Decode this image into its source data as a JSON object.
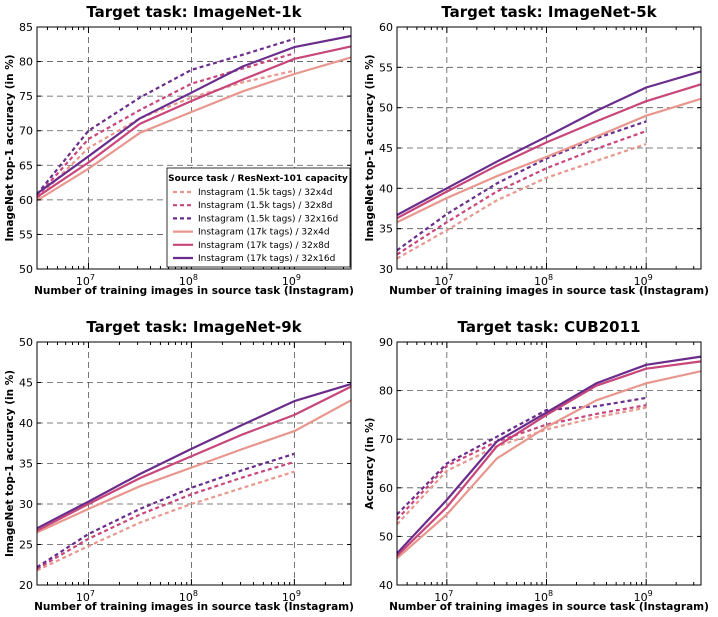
{
  "legend": {
    "title": "Source task / ResNext-101 capacity",
    "entries": [
      {
        "label": "Instagram (1.5k tags) / 32x4d",
        "color": "#e8978e",
        "dashed": true
      },
      {
        "label": "Instagram (1.5k tags) / 32x8d",
        "color": "#c8467a",
        "dashed": true
      },
      {
        "label": "Instagram (1.5k tags) / 32x16d",
        "color": "#6a2d8c",
        "dashed": true
      },
      {
        "label": "Instagram (17k tags) / 32x4d",
        "color": "#e8978e",
        "dashed": false
      },
      {
        "label": "Instagram (17k tags) / 32x8d",
        "color": "#c8467a",
        "dashed": false
      },
      {
        "label": "Instagram (17k tags) / 32x16d",
        "color": "#6a2d8c",
        "dashed": false
      }
    ]
  },
  "chart_data": [
    {
      "type": "line",
      "title": "Target task: ImageNet-1k",
      "xlabel": "Number of training images in source task (Instagram)",
      "ylabel": "ImageNet top-1 accuracy (in %)",
      "xscale": "log",
      "xlim_log10": [
        6.5,
        9.55
      ],
      "ylim": [
        50,
        85
      ],
      "yticks": [
        50,
        55,
        60,
        65,
        70,
        75,
        80,
        85
      ],
      "xtick_base": "10",
      "xtick_exponents": [
        "7",
        "8",
        "9"
      ],
      "legend_position": "lower-right",
      "series": [
        {
          "name": "Instagram (1.5k tags) / 32x4d",
          "x_log10": [
            6.5,
            7.0,
            7.5,
            8.0,
            8.5,
            9.0
          ],
          "values": [
            60.2,
            67.5,
            71.8,
            74.8,
            77.0,
            78.7
          ]
        },
        {
          "name": "Instagram (1.5k tags) / 32x8d",
          "x_log10": [
            6.5,
            7.0,
            7.5,
            8.0,
            8.5,
            9.0
          ],
          "values": [
            60.5,
            68.8,
            73.0,
            76.8,
            79.0,
            81.2
          ]
        },
        {
          "name": "Instagram (1.5k tags) / 32x16d",
          "x_log10": [
            6.5,
            7.0,
            7.5,
            8.0,
            8.5,
            9.0
          ],
          "values": [
            60.8,
            70.0,
            74.8,
            78.8,
            81.0,
            83.3
          ]
        },
        {
          "name": "Instagram (17k tags) / 32x4d",
          "x_log10": [
            6.5,
            7.0,
            7.5,
            8.0,
            8.5,
            9.0,
            9.55
          ],
          "values": [
            59.9,
            64.5,
            69.7,
            72.7,
            75.7,
            78.2,
            80.6
          ]
        },
        {
          "name": "Instagram (17k tags) / 32x8d",
          "x_log10": [
            6.5,
            7.0,
            7.5,
            8.0,
            8.5,
            9.0,
            9.55
          ],
          "values": [
            60.4,
            65.4,
            71.0,
            74.3,
            77.4,
            80.4,
            82.2
          ]
        },
        {
          "name": "Instagram (17k tags) / 32x16d",
          "x_log10": [
            6.5,
            7.0,
            7.5,
            8.0,
            8.5,
            9.0,
            9.55
          ],
          "values": [
            60.9,
            66.3,
            71.8,
            75.5,
            79.3,
            82.1,
            83.7
          ]
        }
      ]
    },
    {
      "type": "line",
      "title": "Target task: ImageNet-5k",
      "xlabel": "Number of training images in source task (Instagram)",
      "ylabel": "ImageNet top-1 accuracy (in %)",
      "xscale": "log",
      "xlim_log10": [
        6.5,
        9.55
      ],
      "ylim": [
        30,
        60
      ],
      "yticks": [
        30,
        35,
        40,
        45,
        50,
        55,
        60
      ],
      "xtick_base": "10",
      "xtick_exponents": [
        "7",
        "8",
        "9"
      ],
      "series": [
        {
          "name": "Instagram (1.5k tags) / 32x4d",
          "x_log10": [
            6.5,
            7.0,
            7.5,
            8.0,
            8.5,
            9.0
          ],
          "values": [
            31.3,
            34.8,
            38.5,
            41.3,
            43.4,
            45.5
          ]
        },
        {
          "name": "Instagram (1.5k tags) / 32x8d",
          "x_log10": [
            6.5,
            7.0,
            7.5,
            8.0,
            8.5,
            9.0
          ],
          "values": [
            31.8,
            35.8,
            39.6,
            42.5,
            44.9,
            47.1
          ]
        },
        {
          "name": "Instagram (1.5k tags) / 32x16d",
          "x_log10": [
            6.5,
            7.0,
            7.5,
            8.0,
            8.5,
            9.0
          ],
          "values": [
            32.3,
            36.8,
            40.6,
            43.7,
            46.2,
            48.3
          ]
        },
        {
          "name": "Instagram (17k tags) / 32x4d",
          "x_log10": [
            6.5,
            7.0,
            7.5,
            8.0,
            8.5,
            9.0,
            9.55
          ],
          "values": [
            35.8,
            38.8,
            41.5,
            43.9,
            46.4,
            49.0,
            51.1
          ]
        },
        {
          "name": "Instagram (17k tags) / 32x8d",
          "x_log10": [
            6.5,
            7.0,
            7.5,
            8.0,
            8.5,
            9.0,
            9.55
          ],
          "values": [
            36.3,
            39.6,
            42.8,
            45.7,
            48.3,
            50.8,
            52.9
          ]
        },
        {
          "name": "Instagram (17k tags) / 32x16d",
          "x_log10": [
            6.5,
            7.0,
            7.5,
            8.0,
            8.5,
            9.0,
            9.55
          ],
          "values": [
            36.7,
            40.0,
            43.3,
            46.4,
            49.6,
            52.5,
            54.5
          ]
        }
      ]
    },
    {
      "type": "line",
      "title": "Target task: ImageNet-9k",
      "xlabel": "Number of training images in source task (Instagram)",
      "ylabel": "ImageNet top-1 accuracy (in %)",
      "xscale": "log",
      "xlim_log10": [
        6.5,
        9.55
      ],
      "ylim": [
        20,
        50
      ],
      "yticks": [
        20,
        25,
        30,
        35,
        40,
        45,
        50
      ],
      "xtick_base": "10",
      "xtick_exponents": [
        "7",
        "8",
        "9"
      ],
      "series": [
        {
          "name": "Instagram (1.5k tags) / 32x4d",
          "x_log10": [
            6.5,
            7.0,
            7.5,
            8.0,
            8.5,
            9.0
          ],
          "values": [
            21.8,
            24.8,
            27.7,
            30.0,
            32.0,
            34.0
          ]
        },
        {
          "name": "Instagram (1.5k tags) / 32x8d",
          "x_log10": [
            6.5,
            7.0,
            7.5,
            8.0,
            8.5,
            9.0
          ],
          "values": [
            22.0,
            25.7,
            28.7,
            31.2,
            33.3,
            35.2
          ]
        },
        {
          "name": "Instagram (1.5k tags) / 32x16d",
          "x_log10": [
            6.5,
            7.0,
            7.5,
            8.0,
            8.5,
            9.0
          ],
          "values": [
            22.2,
            26.3,
            29.4,
            32.0,
            34.2,
            36.2
          ]
        },
        {
          "name": "Instagram (17k tags) / 32x4d",
          "x_log10": [
            6.5,
            7.0,
            7.5,
            8.0,
            8.5,
            9.0,
            9.55
          ],
          "values": [
            26.5,
            29.4,
            32.2,
            34.5,
            36.8,
            39.0,
            42.8
          ]
        },
        {
          "name": "Instagram (17k tags) / 32x8d",
          "x_log10": [
            6.5,
            7.0,
            7.5,
            8.0,
            8.5,
            9.0,
            9.55
          ],
          "values": [
            26.7,
            30.0,
            33.2,
            35.9,
            38.6,
            41.0,
            44.5
          ]
        },
        {
          "name": "Instagram (17k tags) / 32x16d",
          "x_log10": [
            6.5,
            7.0,
            7.5,
            8.0,
            8.5,
            9.0,
            9.55
          ],
          "values": [
            27.0,
            30.3,
            33.7,
            36.8,
            39.8,
            42.7,
            44.8
          ]
        }
      ]
    },
    {
      "type": "line",
      "title": "Target task: CUB2011",
      "xlabel": "Number of training images in source task (Instagram)",
      "ylabel": "Accuracy (in %)",
      "xscale": "log",
      "xlim_log10": [
        6.5,
        9.55
      ],
      "ylim": [
        40,
        90
      ],
      "yticks": [
        40,
        50,
        60,
        70,
        80,
        90
      ],
      "xtick_base": "10",
      "xtick_exponents": [
        "7",
        "8",
        "9"
      ],
      "series": [
        {
          "name": "Instagram (1.5k tags) / 32x4d",
          "x_log10": [
            6.5,
            7.0,
            7.5,
            8.0,
            8.5,
            9.0
          ],
          "values": [
            52.5,
            63.5,
            68.5,
            72.0,
            74.5,
            76.5
          ]
        },
        {
          "name": "Instagram (1.5k tags) / 32x8d",
          "x_log10": [
            6.5,
            7.0,
            7.5,
            8.0,
            8.5,
            9.0
          ],
          "values": [
            53.5,
            64.5,
            69.5,
            73.0,
            75.2,
            77.0
          ]
        },
        {
          "name": "Instagram (1.5k tags) / 32x16d",
          "x_log10": [
            6.5,
            7.0,
            7.5,
            8.0,
            8.5,
            9.0
          ],
          "values": [
            54.5,
            65.0,
            70.5,
            76.0,
            76.8,
            78.5
          ]
        },
        {
          "name": "Instagram (17k tags) / 32x4d",
          "x_log10": [
            6.5,
            7.0,
            7.5,
            8.0,
            8.5,
            9.0,
            9.55
          ],
          "values": [
            45.5,
            54.5,
            66.0,
            72.5,
            78.0,
            81.5,
            84.0
          ]
        },
        {
          "name": "Instagram (17k tags) / 32x8d",
          "x_log10": [
            6.5,
            7.0,
            7.5,
            8.0,
            8.5,
            9.0,
            9.55
          ],
          "values": [
            46.0,
            56.0,
            68.5,
            75.0,
            81.0,
            84.5,
            86.0
          ]
        },
        {
          "name": "Instagram (17k tags) / 32x16d",
          "x_log10": [
            6.5,
            7.0,
            7.5,
            8.0,
            8.5,
            9.0,
            9.55
          ],
          "values": [
            46.5,
            57.5,
            69.5,
            75.5,
            81.5,
            85.3,
            87.0
          ]
        }
      ]
    }
  ]
}
